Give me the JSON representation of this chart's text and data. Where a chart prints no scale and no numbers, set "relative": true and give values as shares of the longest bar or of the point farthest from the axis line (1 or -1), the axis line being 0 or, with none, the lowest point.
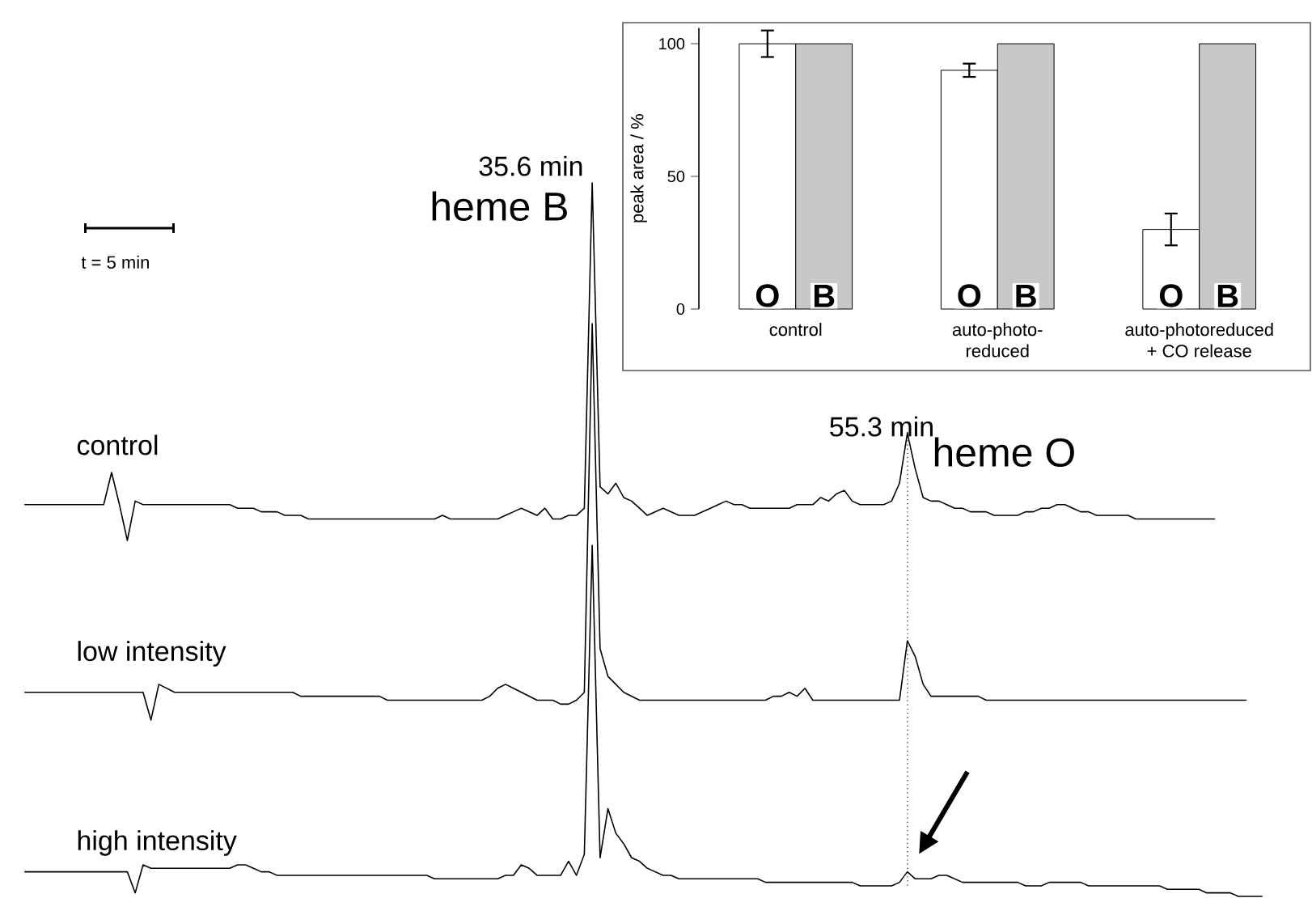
{
  "chart_data": [
    {
      "type": "bar",
      "ylabel": "peak area / %",
      "categories": [
        "control",
        "auto-photo-reduced",
        "auto-photoreduced + CO release"
      ],
      "series": [
        {
          "name": "O",
          "color": "#ffffff",
          "values": [
            100,
            90,
            30
          ],
          "errors": [
            5,
            2.5,
            6
          ]
        },
        {
          "name": "B",
          "color": "#c8c8c8",
          "values": [
            100,
            100,
            100
          ]
        }
      ],
      "ylim": [
        0,
        106
      ],
      "yticks": [
        0,
        50,
        100
      ]
    },
    {
      "type": "line",
      "relative": true,
      "tick_labels": false,
      "marker": "none",
      "line_style": "solid",
      "categories": [
        null,
        null,
        null,
        null,
        null,
        null,
        null,
        null,
        null,
        null,
        null,
        null,
        null,
        null,
        null,
        null,
        null,
        null,
        null,
        null,
        null,
        null,
        null,
        null,
        null,
        null,
        null,
        null,
        null,
        null,
        null,
        null,
        null,
        null,
        null,
        null,
        null,
        null,
        null,
        null,
        null,
        null,
        null,
        null,
        null,
        null,
        null,
        null,
        null,
        null,
        null,
        null,
        null,
        null,
        null,
        null,
        null,
        null,
        null,
        null,
        null,
        null,
        null,
        null,
        null,
        null,
        null,
        null,
        null,
        null,
        null,
        null,
        null,
        null,
        null,
        null,
        null,
        null,
        null,
        null,
        null,
        null,
        null,
        null,
        null,
        null,
        null,
        null,
        null,
        null,
        null,
        null,
        null,
        null,
        null,
        null,
        null,
        null,
        null,
        null,
        null,
        null,
        null,
        null,
        null,
        null,
        null,
        null,
        null,
        null,
        null,
        null,
        null,
        null,
        null,
        null,
        null,
        null,
        null,
        null,
        null,
        null,
        null,
        null,
        null,
        null,
        null,
        null,
        null,
        null,
        null,
        null,
        null,
        null,
        null,
        null,
        null,
        null,
        null,
        null,
        null,
        null,
        null,
        null,
        null,
        null,
        null,
        null,
        null,
        null,
        null,
        null
      ],
      "series": [
        {
          "name": "control",
          "color": "#000000",
          "values": [
            0.1,
            0.1,
            0.1,
            0.1,
            0.1,
            0.1,
            0.1,
            0.1,
            0.1,
            0.1,
            0.1,
            0.19,
            0.1,
            0.0,
            0.11,
            0.1,
            0.1,
            0.1,
            0.1,
            0.1,
            0.1,
            0.1,
            0.1,
            0.1,
            0.1,
            0.1,
            0.1,
            0.09,
            0.09,
            0.09,
            0.08,
            0.08,
            0.08,
            0.07,
            0.07,
            0.07,
            0.06,
            0.06,
            0.06,
            0.06,
            0.06,
            0.06,
            0.06,
            0.06,
            0.06,
            0.06,
            0.06,
            0.06,
            0.06,
            0.06,
            0.06,
            0.06,
            0.06,
            0.07,
            0.06,
            0.06,
            0.06,
            0.06,
            0.06,
            0.06,
            0.06,
            0.07,
            0.08,
            0.09,
            0.08,
            0.07,
            0.09,
            0.06,
            0.06,
            0.07,
            0.07,
            0.09,
            1.0,
            0.15,
            0.13,
            0.16,
            0.12,
            0.11,
            0.09,
            0.07,
            0.08,
            0.09,
            0.08,
            0.07,
            0.07,
            0.07,
            0.08,
            0.09,
            0.1,
            0.11,
            0.1,
            0.1,
            0.09,
            0.09,
            0.09,
            0.09,
            0.09,
            0.09,
            0.1,
            0.1,
            0.1,
            0.12,
            0.11,
            0.13,
            0.14,
            0.11,
            0.1,
            0.1,
            0.1,
            0.1,
            0.11,
            0.16,
            0.3,
            0.2,
            0.12,
            0.11,
            0.11,
            0.1,
            0.09,
            0.09,
            0.08,
            0.08,
            0.08,
            0.07,
            0.07,
            0.07,
            0.07,
            0.08,
            0.08,
            0.09,
            0.09,
            0.1,
            0.1,
            0.09,
            0.08,
            0.08,
            0.07,
            0.07,
            0.07,
            0.07,
            0.07,
            0.06,
            0.06,
            0.06,
            0.06,
            0.06,
            0.06,
            0.06,
            0.06,
            0.06,
            0.06,
            0.06
          ]
        }
      ],
      "annotations": [
        "35.6 min",
        "heme B",
        "55.3 min",
        "heme O",
        "t = 5 min"
      ]
    },
    {
      "type": "line",
      "relative": true,
      "tick_labels": false,
      "marker": "none",
      "line_style": "solid",
      "categories": [
        null,
        null,
        null,
        null,
        null,
        null,
        null,
        null,
        null,
        null,
        null,
        null,
        null,
        null,
        null,
        null,
        null,
        null,
        null,
        null,
        null,
        null,
        null,
        null,
        null,
        null,
        null,
        null,
        null,
        null,
        null,
        null,
        null,
        null,
        null,
        null,
        null,
        null,
        null,
        null,
        null,
        null,
        null,
        null,
        null,
        null,
        null,
        null,
        null,
        null,
        null,
        null,
        null,
        null,
        null,
        null,
        null,
        null,
        null,
        null,
        null,
        null,
        null,
        null,
        null,
        null,
        null,
        null,
        null,
        null,
        null,
        null,
        null,
        null,
        null,
        null,
        null,
        null,
        null,
        null,
        null,
        null,
        null,
        null,
        null,
        null,
        null,
        null,
        null,
        null,
        null,
        null,
        null,
        null,
        null,
        null,
        null,
        null,
        null,
        null,
        null,
        null,
        null,
        null,
        null,
        null,
        null,
        null,
        null,
        null,
        null,
        null,
        null,
        null,
        null,
        null,
        null,
        null,
        null,
        null,
        null,
        null,
        null,
        null,
        null,
        null,
        null,
        null,
        null,
        null,
        null,
        null,
        null,
        null,
        null,
        null,
        null,
        null,
        null,
        null,
        null,
        null,
        null,
        null,
        null,
        null,
        null,
        null,
        null,
        null,
        null,
        null,
        null,
        null,
        null,
        null
      ],
      "series": [
        {
          "name": "low intensity",
          "color": "#000000",
          "values": [
            0.07,
            0.07,
            0.07,
            0.07,
            0.07,
            0.07,
            0.07,
            0.07,
            0.07,
            0.07,
            0.07,
            0.07,
            0.07,
            0.07,
            0.07,
            0.07,
            0.0,
            0.09,
            0.08,
            0.07,
            0.07,
            0.07,
            0.07,
            0.07,
            0.07,
            0.07,
            0.07,
            0.07,
            0.07,
            0.07,
            0.07,
            0.07,
            0.07,
            0.07,
            0.07,
            0.06,
            0.06,
            0.06,
            0.06,
            0.06,
            0.06,
            0.06,
            0.06,
            0.06,
            0.06,
            0.06,
            0.05,
            0.05,
            0.05,
            0.05,
            0.05,
            0.05,
            0.05,
            0.05,
            0.05,
            0.05,
            0.05,
            0.05,
            0.05,
            0.06,
            0.08,
            0.09,
            0.08,
            0.07,
            0.06,
            0.05,
            0.05,
            0.05,
            0.04,
            0.04,
            0.05,
            0.07,
            1.0,
            0.18,
            0.11,
            0.09,
            0.07,
            0.06,
            0.05,
            0.05,
            0.05,
            0.05,
            0.05,
            0.05,
            0.05,
            0.05,
            0.05,
            0.05,
            0.05,
            0.05,
            0.05,
            0.05,
            0.05,
            0.05,
            0.05,
            0.06,
            0.06,
            0.07,
            0.06,
            0.08,
            0.05,
            0.05,
            0.05,
            0.05,
            0.05,
            0.05,
            0.05,
            0.05,
            0.05,
            0.05,
            0.05,
            0.05,
            0.2,
            0.16,
            0.09,
            0.06,
            0.06,
            0.06,
            0.06,
            0.06,
            0.06,
            0.06,
            0.05,
            0.05,
            0.05,
            0.05,
            0.05,
            0.05,
            0.05,
            0.05,
            0.05,
            0.05,
            0.05,
            0.05,
            0.05,
            0.05,
            0.05,
            0.05,
            0.05,
            0.05,
            0.05,
            0.05,
            0.05,
            0.05,
            0.05,
            0.05,
            0.05,
            0.05,
            0.05,
            0.05,
            0.05,
            0.05,
            0.05,
            0.05,
            0.05,
            0.05
          ]
        }
      ]
    },
    {
      "type": "line",
      "relative": true,
      "tick_labels": false,
      "marker": "none",
      "line_style": "solid",
      "categories": [
        null,
        null,
        null,
        null,
        null,
        null,
        null,
        null,
        null,
        null,
        null,
        null,
        null,
        null,
        null,
        null,
        null,
        null,
        null,
        null,
        null,
        null,
        null,
        null,
        null,
        null,
        null,
        null,
        null,
        null,
        null,
        null,
        null,
        null,
        null,
        null,
        null,
        null,
        null,
        null,
        null,
        null,
        null,
        null,
        null,
        null,
        null,
        null,
        null,
        null,
        null,
        null,
        null,
        null,
        null,
        null,
        null,
        null,
        null,
        null,
        null,
        null,
        null,
        null,
        null,
        null,
        null,
        null,
        null,
        null,
        null,
        null,
        null,
        null,
        null,
        null,
        null,
        null,
        null,
        null,
        null,
        null,
        null,
        null,
        null,
        null,
        null,
        null,
        null,
        null,
        null,
        null,
        null,
        null,
        null,
        null,
        null,
        null,
        null,
        null,
        null,
        null,
        null,
        null,
        null,
        null,
        null,
        null,
        null,
        null,
        null,
        null,
        null,
        null,
        null,
        null,
        null,
        null,
        null,
        null,
        null,
        null,
        null,
        null,
        null,
        null,
        null,
        null,
        null,
        null,
        null,
        null,
        null,
        null,
        null,
        null,
        null,
        null,
        null,
        null,
        null,
        null,
        null,
        null,
        null,
        null,
        null,
        null,
        null,
        null,
        null,
        null,
        null,
        null,
        null,
        null,
        null,
        null
      ],
      "series": [
        {
          "name": "high intensity",
          "color": "#000000",
          "values": [
            0.07,
            0.07,
            0.07,
            0.07,
            0.07,
            0.07,
            0.07,
            0.07,
            0.07,
            0.07,
            0.07,
            0.07,
            0.07,
            0.07,
            0.01,
            0.09,
            0.08,
            0.08,
            0.08,
            0.08,
            0.08,
            0.08,
            0.08,
            0.08,
            0.08,
            0.08,
            0.08,
            0.09,
            0.09,
            0.08,
            0.07,
            0.07,
            0.06,
            0.06,
            0.06,
            0.06,
            0.06,
            0.06,
            0.06,
            0.06,
            0.06,
            0.06,
            0.06,
            0.06,
            0.06,
            0.06,
            0.06,
            0.06,
            0.06,
            0.06,
            0.06,
            0.06,
            0.05,
            0.05,
            0.05,
            0.05,
            0.05,
            0.05,
            0.05,
            0.05,
            0.05,
            0.06,
            0.06,
            0.09,
            0.08,
            0.06,
            0.06,
            0.06,
            0.06,
            0.1,
            0.06,
            0.12,
            1.0,
            0.11,
            0.25,
            0.18,
            0.15,
            0.11,
            0.1,
            0.08,
            0.07,
            0.06,
            0.06,
            0.05,
            0.05,
            0.05,
            0.05,
            0.05,
            0.05,
            0.05,
            0.05,
            0.05,
            0.05,
            0.05,
            0.04,
            0.04,
            0.04,
            0.04,
            0.04,
            0.04,
            0.04,
            0.04,
            0.04,
            0.04,
            0.04,
            0.04,
            0.03,
            0.03,
            0.03,
            0.03,
            0.03,
            0.04,
            0.07,
            0.05,
            0.05,
            0.05,
            0.06,
            0.06,
            0.05,
            0.04,
            0.04,
            0.04,
            0.04,
            0.04,
            0.04,
            0.04,
            0.04,
            0.03,
            0.03,
            0.03,
            0.04,
            0.04,
            0.04,
            0.04,
            0.04,
            0.03,
            0.03,
            0.03,
            0.03,
            0.03,
            0.03,
            0.03,
            0.03,
            0.03,
            0.03,
            0.02,
            0.02,
            0.02,
            0.02,
            0.02,
            0.01,
            0.01,
            0.01,
            0.01,
            0.0,
            0.0,
            0.0,
            0.0
          ]
        }
      ]
    }
  ]
}
